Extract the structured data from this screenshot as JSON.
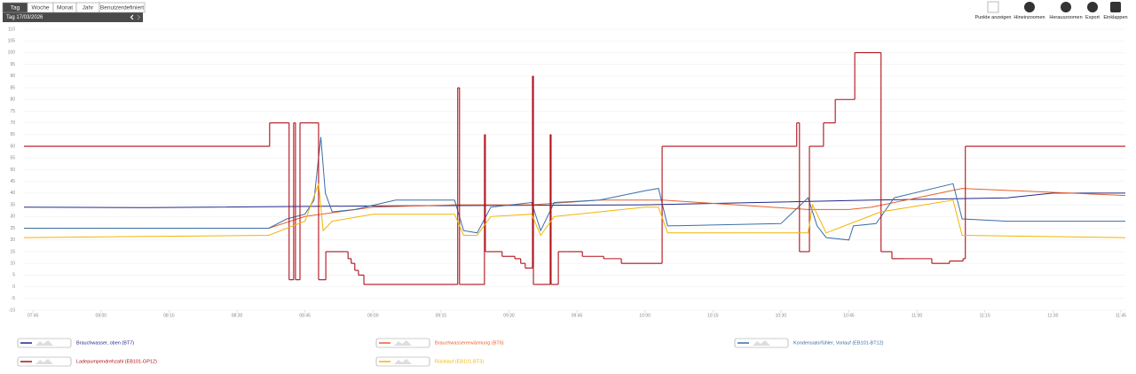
{
  "toolbar": {
    "tabs": [
      "Tag",
      "Woche",
      "Monat",
      "Jahr",
      "Benutzerdefiniert"
    ],
    "period": "Tag  17/03/2026",
    "buttons": [
      "Punkte anzeigen",
      "Hineinzoomen",
      "Herauszoomen",
      "Export",
      "Einklappen"
    ]
  },
  "chart_data": {
    "type": "line",
    "grid": true,
    "ylim": [
      -10,
      110
    ],
    "yticks": [
      -10,
      -5,
      0,
      5,
      10,
      15,
      20,
      25,
      30,
      35,
      40,
      45,
      50,
      55,
      60,
      65,
      70,
      75,
      80,
      85,
      90,
      95,
      100,
      105,
      110
    ],
    "xlim": [
      463,
      706
    ],
    "xticks": [
      {
        "value": 465,
        "label": "07:45"
      },
      {
        "value": 480,
        "label": "08:00"
      },
      {
        "value": 495,
        "label": "08:15"
      },
      {
        "value": 510,
        "label": "08:30"
      },
      {
        "value": 525,
        "label": "08:45"
      },
      {
        "value": 540,
        "label": "09:00"
      },
      {
        "value": 555,
        "label": "09:15"
      },
      {
        "value": 570,
        "label": "09:30"
      },
      {
        "value": 585,
        "label": "09:45"
      },
      {
        "value": 600,
        "label": "10:00"
      },
      {
        "value": 615,
        "label": "10:15"
      },
      {
        "value": 630,
        "label": "10:30"
      },
      {
        "value": 645,
        "label": "10:45"
      },
      {
        "value": 660,
        "label": "11:00"
      },
      {
        "value": 675,
        "label": "11:15"
      },
      {
        "value": 690,
        "label": "11:30"
      },
      {
        "value": 705,
        "label": "11:45"
      }
    ],
    "series": [
      {
        "name": "Brauchwasser, oben (BT7)",
        "color": "#1f2a8a",
        "step": false,
        "x": [
          463,
          490,
          540,
          600,
          650,
          680,
          690,
          706
        ],
        "values": [
          34,
          33.8,
          34.5,
          35,
          37,
          38,
          40,
          40
        ]
      },
      {
        "name": "Brauchwassererwärmung (BT6)",
        "color": "#e8602c",
        "step": false,
        "x": [
          517,
          525,
          540,
          558,
          575,
          590,
          604,
          620,
          636,
          645,
          650,
          660,
          670,
          706
        ],
        "values": [
          25,
          30,
          34,
          35,
          35,
          37,
          37,
          35,
          33,
          33,
          34,
          38,
          42,
          39
        ]
      },
      {
        "name": "Kondensatorfühler, Vorlauf (EB101-BT12)",
        "color": "#3a6ea5",
        "step": false,
        "x": [
          463,
          517,
          521,
          525,
          527,
          528.5,
          529.5,
          531,
          536,
          545,
          558,
          560,
          563,
          566,
          575,
          577,
          580,
          590,
          600,
          603,
          605,
          630,
          636,
          638,
          640,
          645,
          646,
          651,
          655,
          668,
          670,
          680,
          706
        ],
        "values": [
          25,
          25,
          29,
          31,
          37,
          64,
          40,
          32,
          33,
          37,
          37,
          24,
          23,
          34,
          36,
          24,
          36,
          37,
          41,
          42,
          26,
          27,
          38,
          26,
          21,
          20,
          26,
          27,
          38,
          44,
          29,
          28,
          28
        ]
      },
      {
        "name": "Ladepumpendrehzahl (EB101-GP12)",
        "color": "#b0101a",
        "step": true,
        "x": [
          463,
          517.2,
          521.5,
          522.5,
          522.9,
          523.9,
          528,
          529.6,
          533.7,
          534.5,
          535.2,
          536,
          536.8,
          538,
          558.7,
          559.1,
          561.1,
          564.6,
          564.8,
          565.4,
          568.5,
          571.3,
          572.6,
          573.6,
          575.2,
          575.4,
          575.8,
          579.1,
          579.3,
          580.9,
          583,
          586.2,
          590.9,
          594.8,
          603.8,
          633.5,
          634.1,
          636.3,
          639.4,
          642,
          646.3,
          652.1,
          654.5,
          657.4,
          663.3,
          667.2,
          670.2,
          670.7,
          706
        ],
        "values": [
          60,
          70,
          3,
          70,
          3,
          70,
          3,
          15,
          15,
          12,
          10,
          7,
          5,
          1,
          85,
          1,
          1,
          65,
          15,
          15,
          13,
          12,
          10,
          8,
          90,
          1,
          1,
          65,
          1,
          15,
          15,
          13,
          12,
          10,
          60,
          70,
          15,
          60,
          70,
          80,
          100,
          15,
          12,
          12,
          10,
          11,
          12,
          60,
          60
        ]
      },
      {
        "name": "Rücklauf (EB101-BT3)",
        "color": "#f4b400",
        "step": false,
        "x": [
          463,
          517,
          525,
          528,
          529,
          531,
          540,
          558,
          560,
          563,
          566,
          575,
          577,
          580,
          600,
          603,
          605,
          636,
          637,
          640,
          652,
          668,
          670,
          706
        ],
        "values": [
          21,
          22,
          28,
          44,
          24,
          28,
          31,
          31,
          22,
          22,
          30,
          31,
          22,
          30,
          34,
          34,
          23,
          23,
          35,
          23,
          32,
          37,
          22,
          21
        ]
      }
    ]
  }
}
